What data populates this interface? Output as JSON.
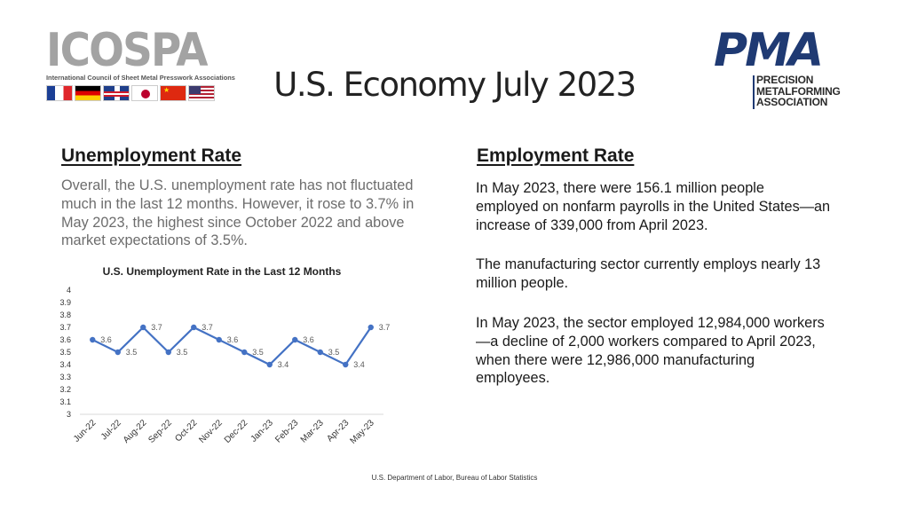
{
  "logos": {
    "icospa": {
      "word": "ICOSPA",
      "subtitle": "International Council of Sheet Metal Presswork Associations",
      "flags": [
        "flag-france",
        "flag-germany",
        "flag-uk",
        "flag-japan",
        "flag-china",
        "flag-usa"
      ]
    },
    "pma": {
      "word": "PMA",
      "lines": [
        "PRECISION",
        "METALFORMING",
        "ASSOCIATION"
      ]
    }
  },
  "title": "U.S. Economy July 2023",
  "unemployment": {
    "heading": "Unemployment Rate",
    "paragraph": "Overall, the U.S. unemployment rate has not fluctuated much in the last 12 months. However, it rose to 3.7% in May 2023, the highest since October 2022 and above market expectations of 3.5%."
  },
  "employment": {
    "heading": "Employment Rate",
    "paragraphs": [
      "In May 2023, there were 156.1 million people employed on nonfarm payrolls in the United States—an increase of 339,000 from April 2023.",
      "The manufacturing sector currently employs nearly 13 million people.",
      "In May 2023, the sector employed 12,984,000 workers—a decline of 2,000 workers compared to April 2023, when there were 12,986,000 manufacturing employees."
    ]
  },
  "chart_data": {
    "type": "line",
    "title": "U.S. Unemployment Rate in the Last 12 Months",
    "categories": [
      "Jun-22",
      "Jul-22",
      "Aug-22",
      "Sep-22",
      "Oct-22",
      "Nov-22",
      "Dec-22",
      "Jan-23",
      "Feb-23",
      "Mar-23",
      "Apr-23",
      "May-23"
    ],
    "values": [
      3.6,
      3.5,
      3.7,
      3.5,
      3.7,
      3.6,
      3.5,
      3.4,
      3.6,
      3.5,
      3.4,
      3.7
    ],
    "yticks": [
      "4",
      "3.9",
      "3.8",
      "3.7",
      "3.6",
      "3.5",
      "3.4",
      "3.3",
      "3.2",
      "3.1",
      "3"
    ],
    "ylim": [
      3,
      4
    ],
    "xlabel": "",
    "ylabel": "",
    "grid": false,
    "line_color": "#4472c4",
    "label_color": "#595959"
  },
  "footer": "U.S. Department of Labor, Bureau of Labor Statistics"
}
